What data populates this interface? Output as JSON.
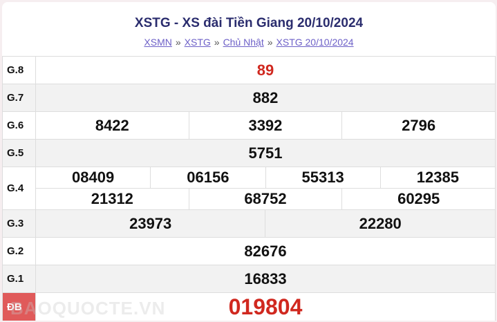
{
  "header": {
    "title": "XSTG - XS đài Tiền Giang 20/10/2024",
    "breadcrumb": [
      "XSMN",
      "XSTG",
      "Chủ Nhật",
      "XSTG 20/10/2024"
    ],
    "separator": "»"
  },
  "results": {
    "g8": {
      "label": "G.8",
      "numbers": [
        "89"
      ]
    },
    "g7": {
      "label": "G.7",
      "numbers": [
        "882"
      ]
    },
    "g6": {
      "label": "G.6",
      "numbers": [
        "8422",
        "3392",
        "2796"
      ]
    },
    "g5": {
      "label": "G.5",
      "numbers": [
        "5751"
      ]
    },
    "g4": {
      "label": "G.4",
      "numbers": [
        "08409",
        "06156",
        "55313",
        "12385",
        "21312",
        "68752",
        "60295"
      ]
    },
    "g3": {
      "label": "G.3",
      "numbers": [
        "23973",
        "22280"
      ]
    },
    "g2": {
      "label": "G.2",
      "numbers": [
        "82676"
      ]
    },
    "g1": {
      "label": "G.1",
      "numbers": [
        "16833"
      ]
    },
    "db": {
      "label": "ĐB",
      "numbers": [
        "019804"
      ]
    }
  },
  "watermark": "BAOQUOCTE.VN",
  "colors": {
    "title": "#2b2d6e",
    "link": "#6c5fc7",
    "highlight": "#d0281f"
  }
}
